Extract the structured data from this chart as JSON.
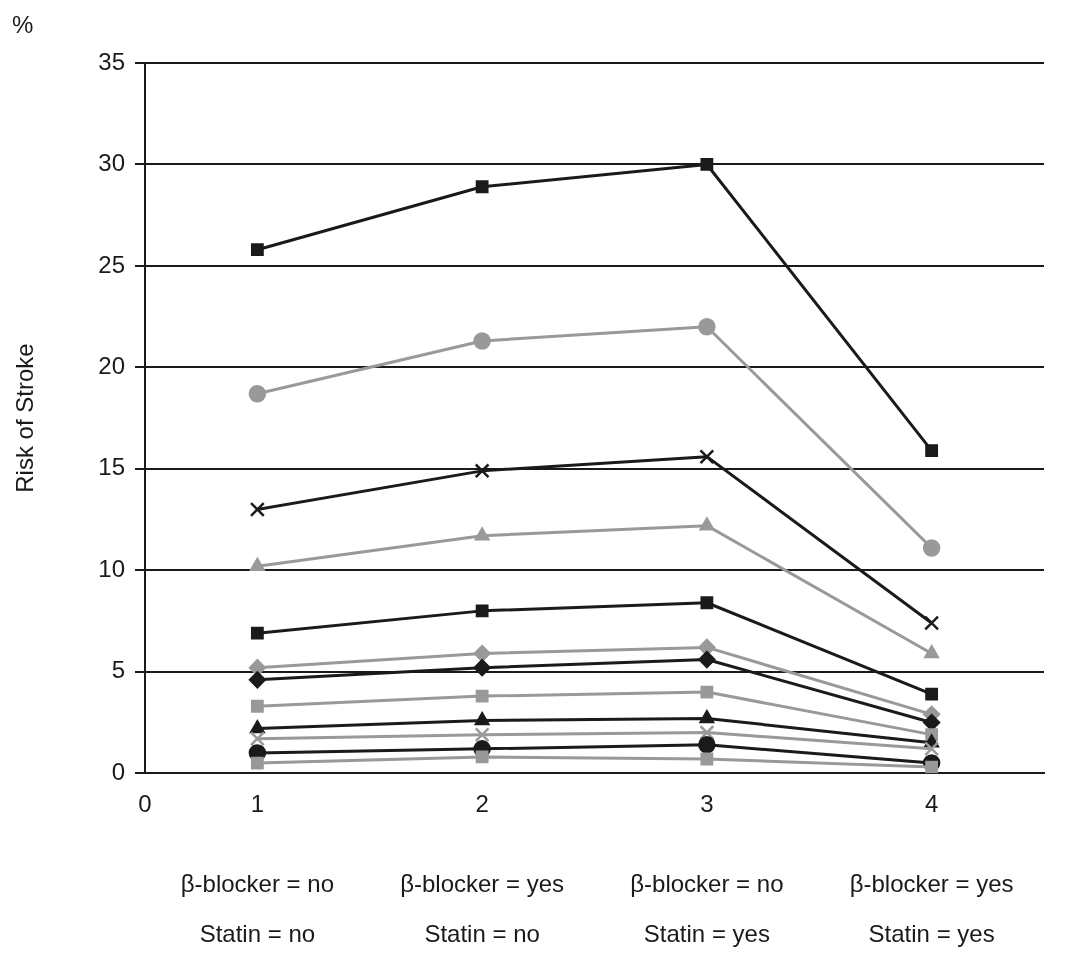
{
  "chart_data": {
    "type": "line",
    "ylabel": "Risk of Stroke",
    "x": [
      1,
      2,
      3,
      4
    ],
    "xlim": [
      0.5,
      4.5
    ],
    "xticks": [
      {
        "value": 0.5,
        "label": "0"
      },
      1,
      2,
      3,
      4
    ],
    "ylim": [
      0,
      35
    ],
    "yticks": [
      0,
      5,
      10,
      15,
      20,
      25,
      30,
      35
    ],
    "grid": "y",
    "legend": false,
    "line_style": "solid",
    "annotations": [
      "%",
      "β-blocker = no\nStatin = no",
      "β-blocker = yes\nStatin = no",
      "β-blocker = no\nStatin = yes",
      "β-blocker = yes\nStatin = yes"
    ],
    "series": [
      {
        "color": "#1a1a1a",
        "marker": "square",
        "values": [
          25.8,
          28.9,
          30.0,
          15.9
        ]
      },
      {
        "color": "#999999",
        "marker": "circle",
        "values": [
          18.7,
          21.3,
          22.0,
          11.1
        ]
      },
      {
        "color": "#1a1a1a",
        "marker": "cross",
        "values": [
          13.0,
          14.9,
          15.6,
          7.4
        ]
      },
      {
        "color": "#999999",
        "marker": "triangle",
        "values": [
          10.2,
          11.7,
          12.2,
          5.9
        ]
      },
      {
        "color": "#1a1a1a",
        "marker": "square",
        "values": [
          6.9,
          8.0,
          8.4,
          3.9
        ]
      },
      {
        "color": "#999999",
        "marker": "diamond",
        "values": [
          5.2,
          5.9,
          6.2,
          2.9
        ]
      },
      {
        "color": "#1a1a1a",
        "marker": "diamond",
        "values": [
          4.6,
          5.2,
          5.6,
          2.5
        ]
      },
      {
        "color": "#999999",
        "marker": "square",
        "values": [
          3.3,
          3.8,
          4.0,
          1.9
        ]
      },
      {
        "color": "#1a1a1a",
        "marker": "triangle",
        "values": [
          2.2,
          2.6,
          2.7,
          1.5
        ]
      },
      {
        "color": "#999999",
        "marker": "cross",
        "values": [
          1.7,
          1.9,
          2.0,
          1.2
        ]
      },
      {
        "color": "#1a1a1a",
        "marker": "circle",
        "values": [
          1.0,
          1.2,
          1.4,
          0.5
        ]
      },
      {
        "color": "#999999",
        "marker": "square",
        "values": [
          0.5,
          0.8,
          0.7,
          0.3
        ]
      }
    ]
  }
}
